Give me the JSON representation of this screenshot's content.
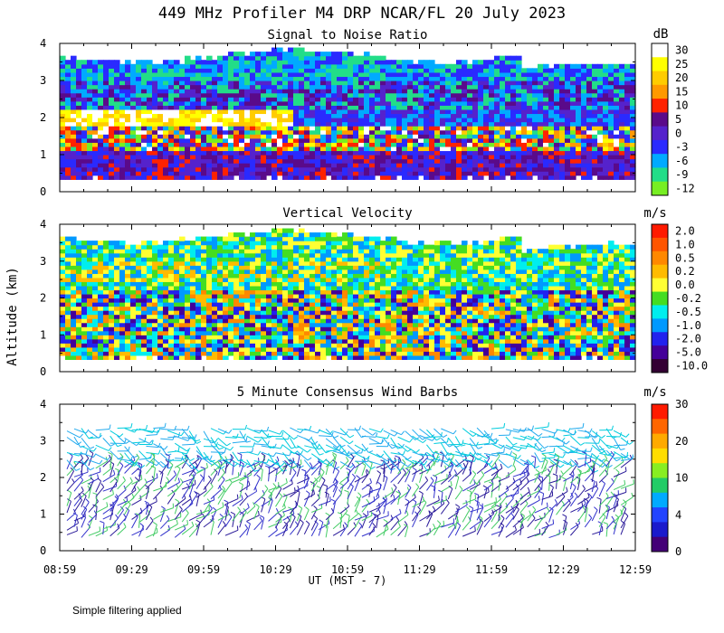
{
  "page": {
    "title": "449 MHz Profiler M4 DRP NCAR/FL 20 July 2023",
    "y_axis_label": "Altitude (km)",
    "x_axis_label": "UT  (MST - 7)",
    "footnote": "Simple filtering applied"
  },
  "chart_data": [
    {
      "type": "heatmap",
      "title": "Signal to Noise Ratio",
      "xlabel": "UT  (MST - 7)",
      "ylabel": "Altitude (km)",
      "x_ticks": [
        "08:59",
        "09:29",
        "09:59",
        "10:29",
        "10:59",
        "11:29",
        "11:59",
        "12:29",
        "12:59"
      ],
      "y_ticks": [
        "0",
        "1",
        "2",
        "3",
        "4"
      ],
      "ylim": [
        0,
        4
      ],
      "colorbar": {
        "unit": "dB",
        "labels": [
          "30",
          "25",
          "20",
          "15",
          "10",
          "5",
          "0",
          "-3",
          "-6",
          "-9",
          "-12"
        ],
        "colors": [
          "#ffffff",
          "#ffff00",
          "#ffcc00",
          "#ff9900",
          "#ff2200",
          "#5a0a8a",
          "#5522cc",
          "#2a2aff",
          "#00aaff",
          "#22dd88",
          "#77ee22"
        ]
      }
    },
    {
      "type": "heatmap",
      "title": "Vertical Velocity",
      "xlabel": "UT  (MST - 7)",
      "ylabel": "Altitude (km)",
      "x_ticks": [
        "08:59",
        "09:29",
        "09:59",
        "10:29",
        "10:59",
        "11:29",
        "11:59",
        "12:29",
        "12:59"
      ],
      "y_ticks": [
        "0",
        "1",
        "2",
        "3",
        "4"
      ],
      "ylim": [
        0,
        4
      ],
      "colorbar": {
        "unit": "m/s",
        "labels": [
          "2.0",
          "1.0",
          "0.5",
          "0.2",
          "0.0",
          "-0.2",
          "-0.5",
          "-1.0",
          "-2.0",
          "-5.0",
          "-10.0"
        ],
        "colors": [
          "#ff1a00",
          "#ff5500",
          "#ff8800",
          "#ffbb00",
          "#ffff33",
          "#44dd22",
          "#00eeee",
          "#0099ff",
          "#2222ee",
          "#440099",
          "#330033"
        ]
      }
    },
    {
      "type": "wind_barbs",
      "title": "5 Minute Consensus Wind Barbs",
      "xlabel": "UT  (MST - 7)",
      "ylabel": "Altitude (km)",
      "x_ticks": [
        "08:59",
        "09:29",
        "09:59",
        "10:29",
        "10:59",
        "11:29",
        "11:59",
        "12:29",
        "12:59"
      ],
      "y_ticks": [
        "0",
        "1",
        "2",
        "3",
        "4"
      ],
      "ylim": [
        0,
        4
      ],
      "colorbar": {
        "unit": "m/s",
        "labels": [
          "30",
          "20",
          "10",
          "4",
          "0"
        ],
        "colors": [
          "#ff1a00",
          "#ff6600",
          "#ffaa00",
          "#ffdd00",
          "#88ee22",
          "#22cc66",
          "#00aaff",
          "#2244ff",
          "#1a1acc",
          "#440077"
        ]
      }
    }
  ]
}
